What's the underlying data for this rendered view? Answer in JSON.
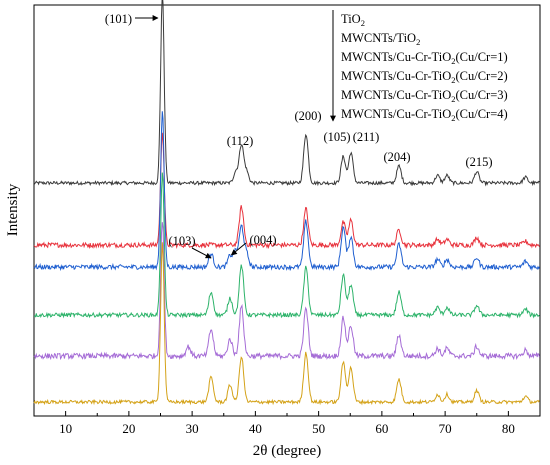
{
  "chart_data": {
    "type": "line",
    "title": "",
    "xlabel": "2θ (degree)",
    "ylabel": "Intensity",
    "xlim": [
      5,
      85
    ],
    "x_ticks": [
      10,
      20,
      30,
      40,
      50,
      60,
      70,
      80
    ],
    "y_ticks": "none",
    "grid": false,
    "legend": {
      "placement": "top-right",
      "entries": [
        {
          "base": "TiO",
          "sub": "2",
          "rest": ""
        },
        {
          "base": "MWCNTs/TiO",
          "sub": "2",
          "rest": ""
        },
        {
          "base": "MWCNTs/Cu-Cr-TiO",
          "sub": "2",
          "rest": "(Cu/Cr=1)"
        },
        {
          "base": "MWCNTs/Cu-Cr-TiO",
          "sub": "2",
          "rest": "(Cu/Cr=2)"
        },
        {
          "base": "MWCNTs/Cu-Cr-TiO",
          "sub": "2",
          "rest": "(Cu/Cr=3)"
        },
        {
          "base": "MWCNTs/Cu-Cr-TiO",
          "sub": "2",
          "rest": "(Cu/Cr=4)"
        }
      ],
      "arrow": "pointing down, from first entry to last"
    },
    "peak_labels": [
      {
        "label": "(101)",
        "x": 25.3
      },
      {
        "label": "(112)",
        "x": 37.8
      },
      {
        "label": "(200)",
        "x": 48.0
      },
      {
        "label": "(105)",
        "x": 53.9
      },
      {
        "label": "(211)",
        "x": 55.1
      },
      {
        "label": "(204)",
        "x": 62.7
      },
      {
        "label": "(215)",
        "x": 75.0
      },
      {
        "label": "(103)",
        "x": 36.9
      },
      {
        "label": "(004)",
        "x": 37.8
      }
    ],
    "series": [
      {
        "name": "TiO2",
        "color": "#3a3a3a",
        "baseline": 5.0,
        "noise": 0.05,
        "peaks": [
          [
            25.3,
            1.0
          ],
          [
            36.9,
            0.06
          ],
          [
            37.8,
            0.2
          ],
          [
            38.6,
            0.06
          ],
          [
            48.0,
            0.26
          ],
          [
            53.9,
            0.14
          ],
          [
            55.1,
            0.16
          ],
          [
            62.7,
            0.09
          ],
          [
            68.8,
            0.04
          ],
          [
            70.3,
            0.04
          ],
          [
            75.0,
            0.06
          ],
          [
            82.7,
            0.03
          ]
        ]
      },
      {
        "name": "MWCNTs/TiO2",
        "color": "#e8323c",
        "baseline": 4.0,
        "noise": 0.07,
        "peaks": [
          [
            25.3,
            0.6
          ],
          [
            37.8,
            0.2
          ],
          [
            48.0,
            0.19
          ],
          [
            53.9,
            0.12
          ],
          [
            55.1,
            0.13
          ],
          [
            62.7,
            0.08
          ],
          [
            68.8,
            0.03
          ],
          [
            70.3,
            0.03
          ],
          [
            75.0,
            0.04
          ],
          [
            82.7,
            0.02
          ]
        ]
      },
      {
        "name": "MWCNTs/Cu-Cr-TiO2(Cu/Cr=1)",
        "color": "#1f5fd0",
        "baseline": 3.0,
        "noise": 0.07,
        "peaks": [
          [
            25.3,
            0.82
          ],
          [
            33.0,
            0.07
          ],
          [
            36.0,
            0.06
          ],
          [
            36.9,
            0.08
          ],
          [
            37.8,
            0.21
          ],
          [
            38.6,
            0.07
          ],
          [
            48.0,
            0.24
          ],
          [
            53.9,
            0.21
          ],
          [
            55.1,
            0.16
          ],
          [
            62.7,
            0.12
          ],
          [
            68.8,
            0.04
          ],
          [
            70.3,
            0.04
          ],
          [
            75.0,
            0.05
          ],
          [
            82.7,
            0.03
          ]
        ]
      },
      {
        "name": "MWCNTs/Cu-Cr-TiO2(Cu/Cr=2)",
        "color": "#2db36a",
        "baseline": 2.0,
        "noise": 0.06,
        "peaks": [
          [
            25.3,
            0.75
          ],
          [
            33.0,
            0.12
          ],
          [
            36.0,
            0.09
          ],
          [
            37.8,
            0.26
          ],
          [
            48.0,
            0.25
          ],
          [
            53.9,
            0.21
          ],
          [
            55.1,
            0.16
          ],
          [
            62.7,
            0.12
          ],
          [
            68.8,
            0.04
          ],
          [
            70.3,
            0.04
          ],
          [
            75.0,
            0.05
          ],
          [
            82.7,
            0.03
          ]
        ]
      },
      {
        "name": "MWCNTs/Cu-Cr-TiO2(Cu/Cr=3)",
        "color": "#a56cd6",
        "baseline": 1.0,
        "noise": 0.08,
        "peaks": [
          [
            25.3,
            0.72
          ],
          [
            29.4,
            0.05
          ],
          [
            33.0,
            0.14
          ],
          [
            36.0,
            0.09
          ],
          [
            37.8,
            0.26
          ],
          [
            48.0,
            0.25
          ],
          [
            53.9,
            0.2
          ],
          [
            55.1,
            0.16
          ],
          [
            62.7,
            0.11
          ],
          [
            68.8,
            0.04
          ],
          [
            70.3,
            0.04
          ],
          [
            75.0,
            0.05
          ],
          [
            82.7,
            0.03
          ]
        ]
      },
      {
        "name": "MWCNTs/Cu-Cr-TiO2(Cu/Cr=4)",
        "color": "#d4a218",
        "baseline": 0.0,
        "noise": 0.05,
        "peaks": [
          [
            25.3,
            0.84
          ],
          [
            33.0,
            0.13
          ],
          [
            36.0,
            0.09
          ],
          [
            37.8,
            0.24
          ],
          [
            48.0,
            0.26
          ],
          [
            53.9,
            0.21
          ],
          [
            55.1,
            0.18
          ],
          [
            62.7,
            0.12
          ],
          [
            68.8,
            0.04
          ],
          [
            70.3,
            0.04
          ],
          [
            75.0,
            0.06
          ],
          [
            82.7,
            0.03
          ]
        ]
      }
    ]
  }
}
